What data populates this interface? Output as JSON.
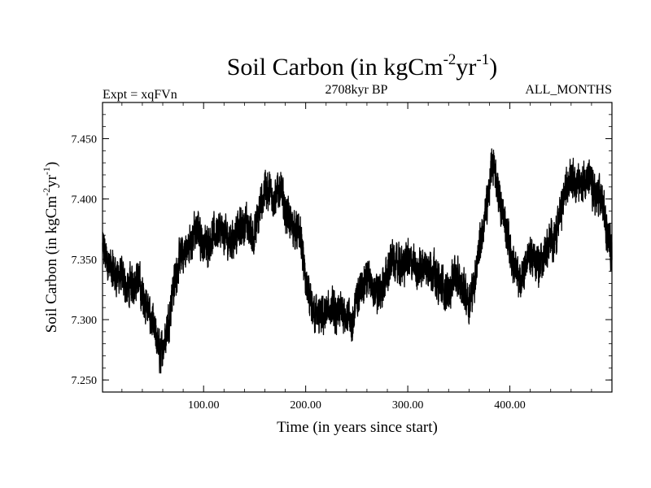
{
  "chart_data": {
    "type": "line",
    "title": {
      "main": "Soil Carbon (in kgCm",
      "sup1": "-2",
      "mid": "yr",
      "sup2": "-1",
      "close": ")"
    },
    "header": {
      "left": "Expt = xqFVn",
      "center": "2708kyr BP",
      "right": "ALL_MONTHS"
    },
    "xlabel": "Time (in years since start)",
    "ylabel": {
      "main": "Soil Carbon (in kgCm",
      "sup1": "-2",
      "mid": "yr",
      "sup2": "-1",
      "close": ")"
    },
    "xlim": [
      1,
      500
    ],
    "ylim": [
      7.24,
      7.48
    ],
    "xticks": [
      {
        "value": 100,
        "label": "100.00"
      },
      {
        "value": 200,
        "label": "200.00"
      },
      {
        "value": 300,
        "label": "300.00"
      },
      {
        "value": 400,
        "label": "400.00"
      }
    ],
    "yticks": [
      {
        "value": 7.25,
        "label": "7.250"
      },
      {
        "value": 7.3,
        "label": "7.300"
      },
      {
        "value": 7.35,
        "label": "7.350"
      },
      {
        "value": 7.4,
        "label": "7.400"
      },
      {
        "value": 7.45,
        "label": "7.450"
      }
    ],
    "series": [
      {
        "name": "soil carbon",
        "color": "#000000",
        "noise": 0.012,
        "points_per_year": 12,
        "trend": [
          [
            1,
            7.36
          ],
          [
            5,
            7.35
          ],
          [
            10,
            7.34
          ],
          [
            20,
            7.335
          ],
          [
            25,
            7.325
          ],
          [
            30,
            7.33
          ],
          [
            35,
            7.335
          ],
          [
            40,
            7.32
          ],
          [
            45,
            7.31
          ],
          [
            50,
            7.295
          ],
          [
            55,
            7.28
          ],
          [
            58,
            7.27
          ],
          [
            62,
            7.285
          ],
          [
            66,
            7.3
          ],
          [
            70,
            7.325
          ],
          [
            75,
            7.345
          ],
          [
            80,
            7.355
          ],
          [
            85,
            7.36
          ],
          [
            90,
            7.37
          ],
          [
            95,
            7.375
          ],
          [
            100,
            7.36
          ],
          [
            105,
            7.365
          ],
          [
            110,
            7.37
          ],
          [
            115,
            7.375
          ],
          [
            120,
            7.37
          ],
          [
            125,
            7.365
          ],
          [
            130,
            7.37
          ],
          [
            135,
            7.375
          ],
          [
            140,
            7.38
          ],
          [
            145,
            7.375
          ],
          [
            150,
            7.37
          ],
          [
            155,
            7.39
          ],
          [
            160,
            7.41
          ],
          [
            165,
            7.405
          ],
          [
            170,
            7.4
          ],
          [
            175,
            7.41
          ],
          [
            180,
            7.39
          ],
          [
            185,
            7.38
          ],
          [
            190,
            7.375
          ],
          [
            195,
            7.37
          ],
          [
            200,
            7.33
          ],
          [
            205,
            7.31
          ],
          [
            210,
            7.305
          ],
          [
            215,
            7.3
          ],
          [
            220,
            7.305
          ],
          [
            225,
            7.31
          ],
          [
            230,
            7.3
          ],
          [
            235,
            7.31
          ],
          [
            240,
            7.305
          ],
          [
            245,
            7.295
          ],
          [
            250,
            7.315
          ],
          [
            255,
            7.33
          ],
          [
            260,
            7.335
          ],
          [
            265,
            7.33
          ],
          [
            270,
            7.32
          ],
          [
            275,
            7.325
          ],
          [
            280,
            7.34
          ],
          [
            285,
            7.35
          ],
          [
            290,
            7.345
          ],
          [
            295,
            7.345
          ],
          [
            300,
            7.35
          ],
          [
            305,
            7.345
          ],
          [
            310,
            7.34
          ],
          [
            315,
            7.345
          ],
          [
            320,
            7.345
          ],
          [
            325,
            7.34
          ],
          [
            330,
            7.33
          ],
          [
            335,
            7.325
          ],
          [
            340,
            7.32
          ],
          [
            345,
            7.34
          ],
          [
            350,
            7.33
          ],
          [
            355,
            7.325
          ],
          [
            360,
            7.315
          ],
          [
            365,
            7.33
          ],
          [
            370,
            7.36
          ],
          [
            375,
            7.38
          ],
          [
            380,
            7.41
          ],
          [
            383,
            7.43
          ],
          [
            386,
            7.42
          ],
          [
            390,
            7.4
          ],
          [
            395,
            7.38
          ],
          [
            400,
            7.36
          ],
          [
            405,
            7.34
          ],
          [
            410,
            7.33
          ],
          [
            415,
            7.345
          ],
          [
            420,
            7.355
          ],
          [
            425,
            7.35
          ],
          [
            430,
            7.345
          ],
          [
            435,
            7.355
          ],
          [
            440,
            7.365
          ],
          [
            445,
            7.37
          ],
          [
            450,
            7.39
          ],
          [
            455,
            7.41
          ],
          [
            460,
            7.42
          ],
          [
            465,
            7.415
          ],
          [
            470,
            7.41
          ],
          [
            475,
            7.42
          ],
          [
            480,
            7.41
          ],
          [
            485,
            7.4
          ],
          [
            490,
            7.4
          ],
          [
            495,
            7.375
          ],
          [
            500,
            7.355
          ]
        ]
      }
    ]
  }
}
